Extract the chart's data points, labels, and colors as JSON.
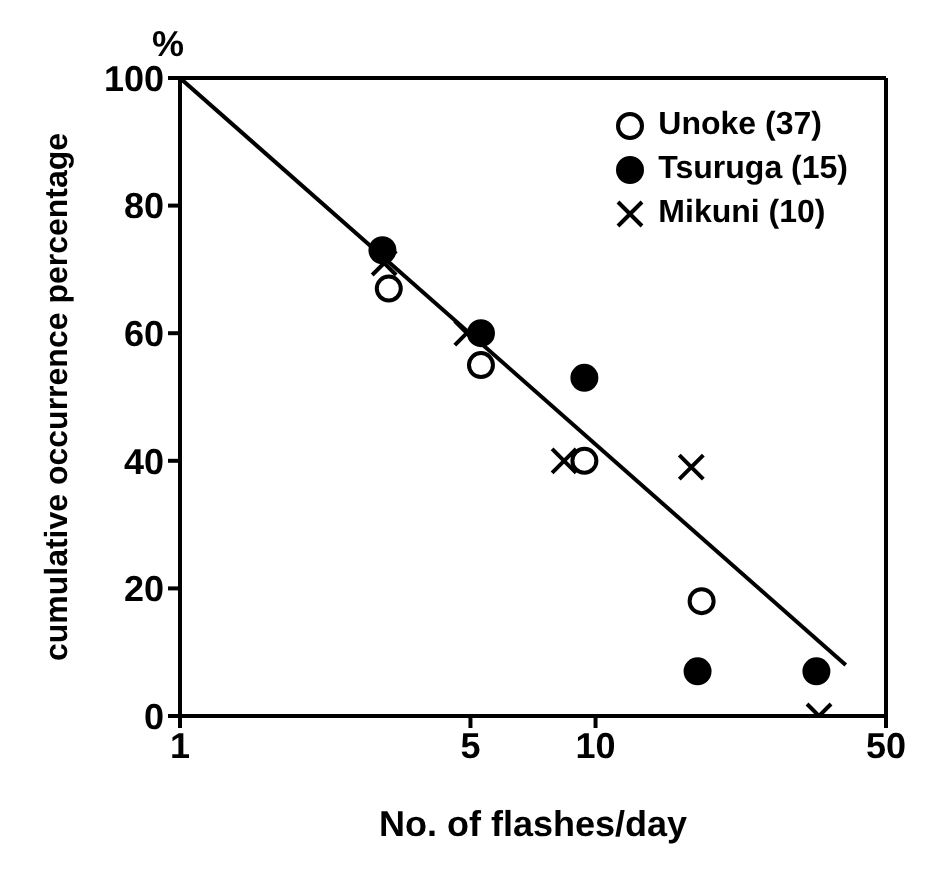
{
  "chart_data": {
    "type": "scatter",
    "xlabel": "No. of flashes/day",
    "ylabel": "cumulative occurrence percentage",
    "annotations": [
      "%"
    ],
    "log": "x",
    "xlim": [
      1,
      50
    ],
    "xticks": [
      1,
      5,
      10,
      50
    ],
    "ylim": [
      0,
      100
    ],
    "yticks": [
      0,
      20,
      40,
      60,
      80,
      100
    ],
    "legend": "top right",
    "series": [
      {
        "name": "Unoke (37)",
        "color": "#ffffff",
        "marker": "circle",
        "x": [
          3.18,
          5.3,
          9.4,
          18
        ],
        "values": [
          67,
          55,
          40,
          18
        ]
      },
      {
        "name": "Tsuruga (15)",
        "color": "#000000",
        "marker": "circle",
        "x": [
          3.07,
          5.3,
          9.4,
          17.6,
          34
        ],
        "values": [
          73,
          60,
          53,
          7,
          7
        ]
      },
      {
        "name": "Mikuni (10)",
        "color": "#000000",
        "marker": "cross",
        "x": [
          3.1,
          4.9,
          8.4,
          17,
          34.5
        ],
        "values": [
          71,
          60,
          40,
          39,
          0
        ]
      },
      {
        "type": "line",
        "color": "#000000",
        "marker": "none",
        "line_style": "solid",
        "x": [
          1,
          40
        ],
        "values": [
          100,
          8
        ]
      }
    ]
  }
}
